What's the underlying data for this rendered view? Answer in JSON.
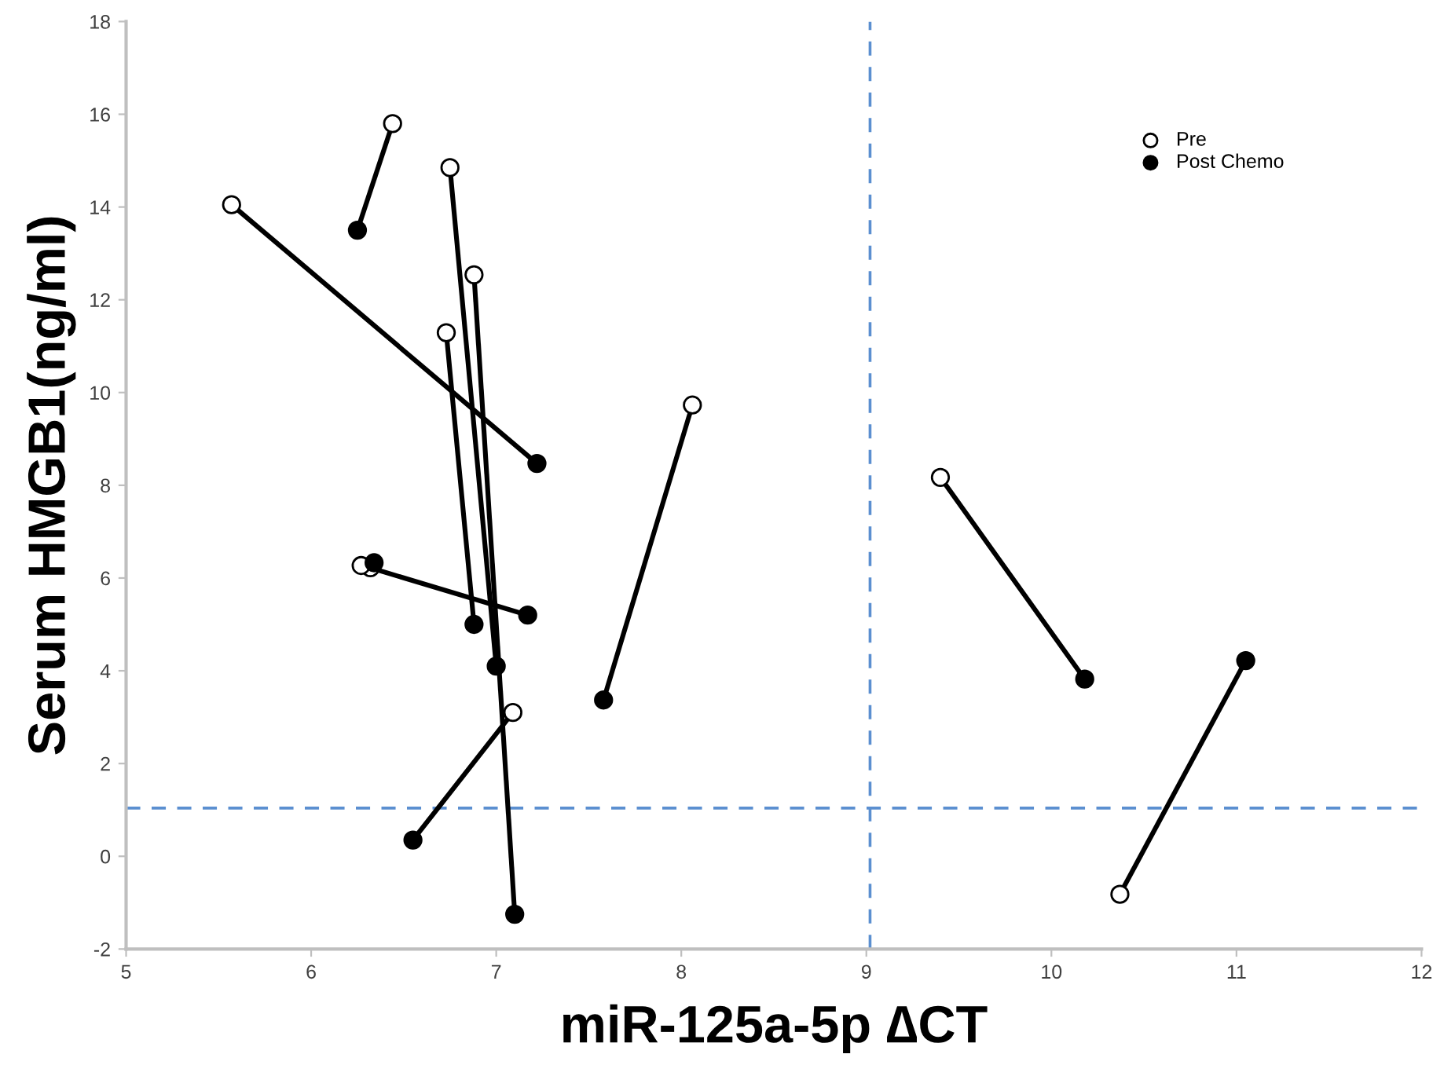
{
  "chart_data": {
    "type": "scatter",
    "xlabel": "miR-125a-5p ∆CT",
    "ylabel": "Serum HMGB1(ng/ml)",
    "xlim": [
      5,
      12
    ],
    "ylim": [
      -2,
      18
    ],
    "xticks": [
      5,
      6,
      7,
      8,
      9,
      10,
      11,
      12
    ],
    "yticks": [
      -2,
      0,
      2,
      4,
      6,
      8,
      10,
      12,
      14,
      16,
      18
    ],
    "grid": false,
    "legend": "top right",
    "marker": "circle",
    "ref_lines": [
      {
        "axis": "x",
        "value": 9.02,
        "color": "#5b8fd0",
        "line_style": "dashed"
      },
      {
        "axis": "y",
        "value": 1.04,
        "color": "#5b8fd0",
        "line_style": "dashed"
      }
    ],
    "series": [
      {
        "type": "line",
        "marker": "none",
        "color": "#000000",
        "x": [
          6.44,
          6.25
        ],
        "values": [
          15.8,
          13.5
        ]
      },
      {
        "type": "line",
        "marker": "none",
        "color": "#000000",
        "x": [
          5.57,
          7.22
        ],
        "values": [
          14.05,
          8.47
        ]
      },
      {
        "type": "line",
        "marker": "none",
        "color": "#000000",
        "x": [
          6.75,
          7.0
        ],
        "values": [
          14.85,
          4.1
        ]
      },
      {
        "type": "line",
        "marker": "none",
        "color": "#000000",
        "x": [
          6.88,
          7.1
        ],
        "values": [
          12.54,
          -1.25
        ]
      },
      {
        "type": "line",
        "marker": "none",
        "color": "#000000",
        "x": [
          6.73,
          6.88
        ],
        "values": [
          11.29,
          5.0
        ]
      },
      {
        "type": "line",
        "marker": "none",
        "color": "#000000",
        "x": [
          8.06,
          7.58
        ],
        "values": [
          9.73,
          3.37
        ]
      },
      {
        "type": "line",
        "marker": "none",
        "color": "#000000",
        "x": [
          6.32,
          7.17
        ],
        "values": [
          6.22,
          5.2
        ]
      },
      {
        "type": "line",
        "marker": "none",
        "color": "#000000",
        "x": [
          7.09,
          6.55
        ],
        "values": [
          3.1,
          0.35
        ]
      },
      {
        "type": "line",
        "marker": "none",
        "color": "#000000",
        "x": [
          9.4,
          10.18
        ],
        "values": [
          8.17,
          3.82
        ]
      },
      {
        "type": "line",
        "marker": "none",
        "color": "#000000",
        "x": [
          10.37,
          11.05
        ],
        "values": [
          -0.82,
          4.22
        ]
      },
      {
        "name": "Pre",
        "color": "#ffffff",
        "x": [
          6.44,
          5.57,
          6.75,
          6.88,
          6.73,
          8.06,
          6.32,
          6.27,
          7.09,
          9.4,
          10.37
        ],
        "values": [
          15.8,
          14.05,
          14.85,
          12.54,
          11.29,
          9.73,
          6.22,
          6.27,
          3.1,
          8.17,
          -0.82
        ]
      },
      {
        "name": "Post Chemo",
        "color": "#000000",
        "x": [
          6.25,
          7.22,
          7.0,
          7.1,
          6.88,
          7.58,
          7.17,
          6.34,
          6.55,
          10.18,
          11.05
        ],
        "values": [
          13.5,
          8.47,
          4.1,
          -1.25,
          5.0,
          3.37,
          5.2,
          6.33,
          0.35,
          3.82,
          4.22
        ]
      }
    ]
  }
}
